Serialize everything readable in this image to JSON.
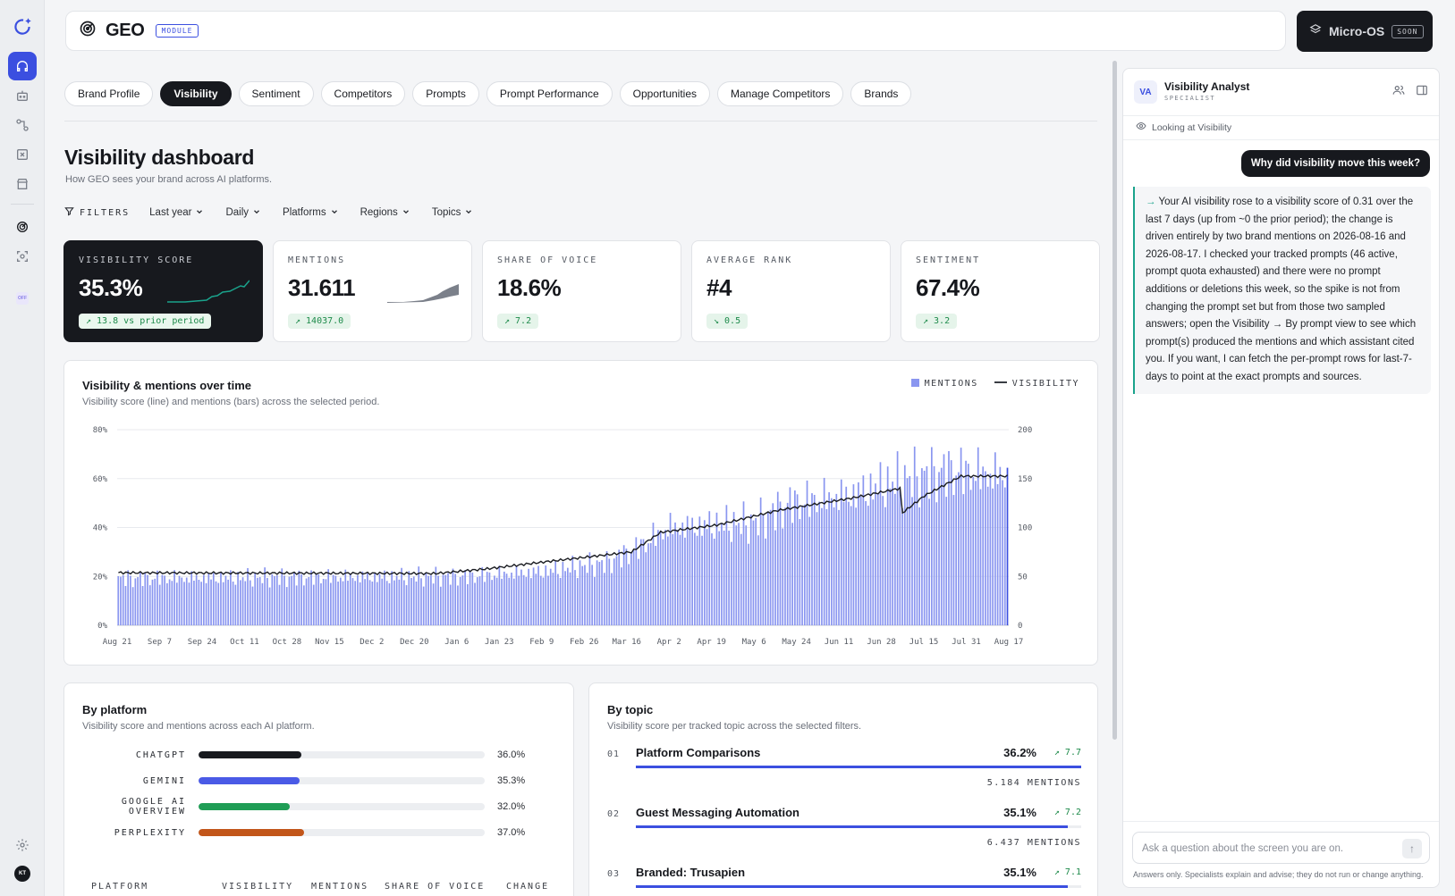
{
  "app": {
    "title": "GEO",
    "module_badge": "MODULE",
    "microos_label": "Micro-OS",
    "soon_badge": "SOON",
    "user_initials": "KT",
    "rail_badge": "OFF"
  },
  "tabs": [
    {
      "label": "Brand Profile",
      "active": false
    },
    {
      "label": "Visibility",
      "active": true
    },
    {
      "label": "Sentiment",
      "active": false
    },
    {
      "label": "Competitors",
      "active": false
    },
    {
      "label": "Prompts",
      "active": false
    },
    {
      "label": "Prompt Performance",
      "active": false
    },
    {
      "label": "Opportunities",
      "active": false
    },
    {
      "label": "Manage Competitors",
      "active": false
    },
    {
      "label": "Brands",
      "active": false
    }
  ],
  "page": {
    "title": "Visibility dashboard",
    "subtitle": "How GEO sees your brand across AI platforms."
  },
  "filters": {
    "label": "FILTERS",
    "items": [
      "Last year",
      "Daily",
      "Platforms",
      "Regions",
      "Topics"
    ]
  },
  "kpis": [
    {
      "label": "VISIBILITY SCORE",
      "value": "35.3%",
      "delta": "↗ 13.8 vs prior period",
      "dark": true
    },
    {
      "label": "MENTIONS",
      "value": "31.611",
      "delta": "↗ 14037.0"
    },
    {
      "label": "SHARE OF VOICE",
      "value": "18.6%",
      "delta": "↗ 7.2"
    },
    {
      "label": "AVERAGE RANK",
      "value": "#4",
      "delta": "↘ 0.5"
    },
    {
      "label": "SENTIMENT",
      "value": "67.4%",
      "delta": "↗ 3.2"
    }
  ],
  "colors": {
    "accent": "#3b4fe0",
    "bars": "#8a96f0",
    "line": "#1a1c21",
    "positive": "#1d8a4a",
    "teal": "#1aa38c",
    "chatgpt": "#17191e",
    "gemini": "#4a5ae6",
    "google_ai_overview": "#1f9d55",
    "perplexity": "#c2561a"
  },
  "timeline_card": {
    "title": "Visibility & mentions over time",
    "subtitle": "Visibility score (line) and mentions (bars) across the selected period.",
    "legend_mentions": "MENTIONS",
    "legend_visibility": "VISIBILITY"
  },
  "chart_data": {
    "type": "bar",
    "title": "Visibility & mentions over time",
    "series": [
      {
        "name": "MENTIONS",
        "type": "bar",
        "axis": "right",
        "description": "daily mentions"
      },
      {
        "name": "VISIBILITY",
        "type": "line",
        "axis": "left"
      }
    ],
    "x_tick_labels": [
      "Aug 21",
      "Sep 7",
      "Sep 24",
      "Oct 11",
      "Oct 28",
      "Nov 15",
      "Dec 2",
      "Dec 20",
      "Jan 6",
      "Jan 23",
      "Feb 9",
      "Feb 26",
      "Mar 16",
      "Apr 2",
      "Apr 19",
      "May 6",
      "May 24",
      "Jun 11",
      "Jun 28",
      "Jul 15",
      "Jul 31",
      "Aug 17"
    ],
    "y_left_ticks": [
      "0%",
      "20%",
      "40%",
      "60%",
      "80%"
    ],
    "y_right_ticks": [
      "0",
      "50",
      "100",
      "150",
      "200"
    ],
    "y_left_range": [
      0,
      80
    ],
    "y_right_range": [
      0,
      200
    ],
    "days": 365,
    "mentions_segments": [
      {
        "day": 0,
        "value": 54
      },
      {
        "day": 140,
        "value": 56
      },
      {
        "day": 175,
        "value": 62
      },
      {
        "day": 200,
        "value": 72
      },
      {
        "day": 212,
        "value": 88
      },
      {
        "day": 225,
        "value": 112
      },
      {
        "day": 260,
        "value": 118
      },
      {
        "day": 275,
        "value": 140
      },
      {
        "day": 300,
        "value": 150
      },
      {
        "day": 318,
        "value": 165
      },
      {
        "day": 340,
        "value": 178
      },
      {
        "day": 364,
        "value": 172
      }
    ],
    "visibility_segments": [
      {
        "day": 0,
        "value": 21.5
      },
      {
        "day": 130,
        "value": 21.2
      },
      {
        "day": 150,
        "value": 23
      },
      {
        "day": 175,
        "value": 26
      },
      {
        "day": 210,
        "value": 30
      },
      {
        "day": 222,
        "value": 38
      },
      {
        "day": 245,
        "value": 41
      },
      {
        "day": 270,
        "value": 47
      },
      {
        "day": 300,
        "value": 52
      },
      {
        "day": 320,
        "value": 56
      },
      {
        "day": 321,
        "value": 46
      },
      {
        "day": 330,
        "value": 53
      },
      {
        "day": 345,
        "value": 61
      },
      {
        "day": 364,
        "value": 61
      }
    ],
    "grid": true,
    "legend": "top-right"
  },
  "platform_card": {
    "title": "By platform",
    "subtitle": "Visibility score and mentions across each AI platform.",
    "rows": [
      {
        "name": "CHATGPT",
        "value": "36.0%",
        "pct": 36.0,
        "color": "#17191e"
      },
      {
        "name": "GEMINI",
        "value": "35.3%",
        "pct": 35.3,
        "color": "#4a5ae6"
      },
      {
        "name": "GOOGLE AI OVERVIEW",
        "value": "32.0%",
        "pct": 32.0,
        "color": "#1f9d55"
      },
      {
        "name": "PERPLEXITY",
        "value": "37.0%",
        "pct": 37.0,
        "color": "#c2561a"
      }
    ],
    "table_headers": [
      "PLATFORM",
      "VISIBILITY",
      "MENTIONS",
      "SHARE OF VOICE",
      "CHANGE"
    ]
  },
  "topic_card": {
    "title": "By topic",
    "subtitle": "Visibility score per tracked topic across the selected filters.",
    "rows": [
      {
        "num": "01",
        "name": "Platform Comparisons",
        "value": "36.2%",
        "delta": "↗ 7.7",
        "mentions": "5.184 MENTIONS",
        "pct": 36.2
      },
      {
        "num": "02",
        "name": "Guest Messaging Automation",
        "value": "35.1%",
        "delta": "↗ 7.2",
        "mentions": "6.437 MENTIONS",
        "pct": 35.1
      },
      {
        "num": "03",
        "name": "Branded: Trusapien",
        "value": "35.1%",
        "delta": "↗ 7.1",
        "mentions": "",
        "pct": 35.1
      }
    ]
  },
  "assistant": {
    "avatar": "VA",
    "name": "Visibility Analyst",
    "role": "SPECIALIST",
    "context": "Looking at Visibility",
    "user_message": "Why did visibility move this week?",
    "answer": "Your AI visibility rose to a visibility score of 0.31 over the last 7 days (up from ~0 the prior period); the change is driven entirely by two brand mentions on 2026-08-16 and 2026-08-17. I checked your tracked prompts (46 active, prompt quota exhausted) and there were no prompt additions or deletions this week, so the spike is not from changing the prompt set but from those two sampled answers; open the Visibility → By prompt view to see which prompt(s) produced the mentions and which assistant cited you. If you want, I can fetch the per-prompt rows for last-7-days to point at the exact prompts and sources.",
    "input_placeholder": "Ask a question about the screen you are on.",
    "disclaimer": "Answers only. Specialists explain and advise; they do not run or change anything."
  }
}
